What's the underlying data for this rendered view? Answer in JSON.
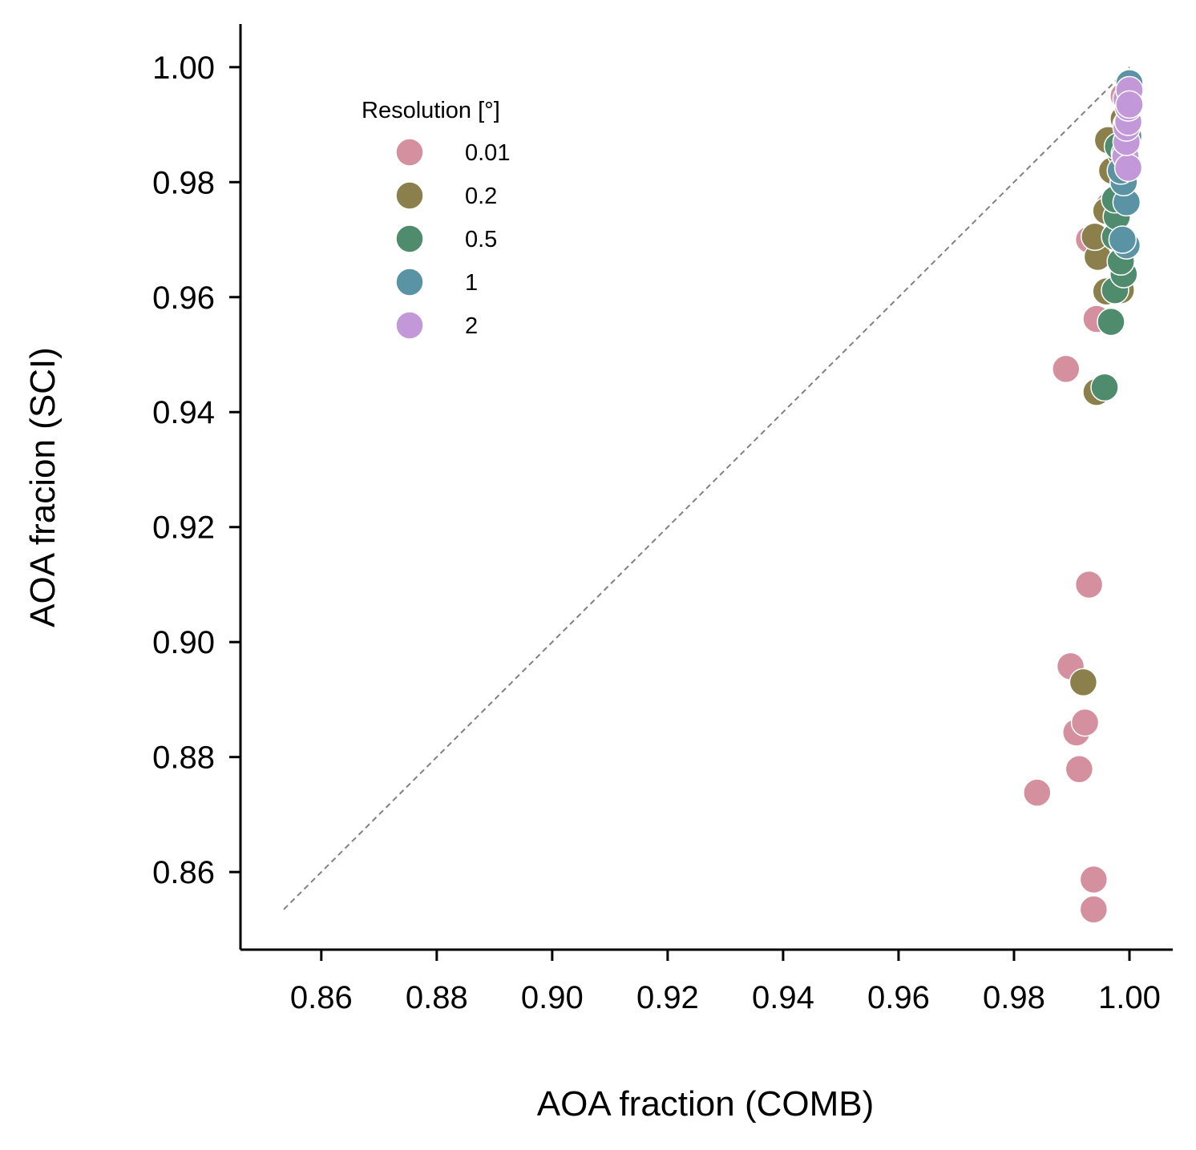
{
  "chart_data": {
    "type": "scatter",
    "xlabel": "AOA fraction (COMB)",
    "ylabel": "AOA fracion (SCI)",
    "xlim": [
      0.846,
      1.0075
    ],
    "ylim": [
      0.8465,
      1.0075
    ],
    "x_ticks": [
      0.86,
      0.88,
      0.9,
      0.92,
      0.94,
      0.96,
      0.98,
      1.0
    ],
    "y_ticks": [
      0.86,
      0.88,
      0.9,
      0.92,
      0.94,
      0.96,
      0.98,
      1.0
    ],
    "x_tick_labels": [
      "0.86",
      "0.88",
      "0.90",
      "0.92",
      "0.94",
      "0.96",
      "0.98",
      "1.00"
    ],
    "y_tick_labels": [
      "0.86",
      "0.88",
      "0.90",
      "0.92",
      "0.94",
      "0.96",
      "0.98",
      "1.00"
    ],
    "grid": false,
    "reference_line": {
      "style": "dashed",
      "color": "#808080",
      "from": [
        0.8535,
        0.8535
      ],
      "to": [
        1.0,
        1.0
      ]
    },
    "legend": {
      "title": "Resolution [°]",
      "placement": "upper-left"
    },
    "series": [
      {
        "name": "0.01",
        "color": "#D4909E",
        "points": [
          [
            0.9938,
            0.8535
          ],
          [
            0.9938,
            0.8587
          ],
          [
            0.984,
            0.8738
          ],
          [
            0.9913,
            0.8779
          ],
          [
            0.9908,
            0.8843
          ],
          [
            0.9923,
            0.886
          ],
          [
            0.9898,
            0.8958
          ],
          [
            0.993,
            0.91
          ],
          [
            0.989,
            0.9475
          ],
          [
            0.9943,
            0.9562
          ],
          [
            0.993,
            0.97
          ],
          [
            0.9965,
            0.976
          ],
          [
            0.9985,
            0.9842
          ],
          [
            0.9995,
            0.99
          ],
          [
            0.999,
            0.995
          ]
        ]
      },
      {
        "name": "0.2",
        "color": "#8B804B",
        "points": [
          [
            0.992,
            0.893
          ],
          [
            0.9943,
            0.9435
          ],
          [
            0.996,
            0.961
          ],
          [
            0.9985,
            0.9612
          ],
          [
            0.9945,
            0.967
          ],
          [
            0.994,
            0.9705
          ],
          [
            0.996,
            0.975
          ],
          [
            0.997,
            0.982
          ],
          [
            0.9963,
            0.9873
          ],
          [
            0.9985,
            0.985
          ],
          [
            0.999,
            0.991
          ]
        ]
      },
      {
        "name": "0.5",
        "color": "#4F8C6E",
        "points": [
          [
            0.9957,
            0.9443
          ],
          [
            0.9968,
            0.9557
          ],
          [
            0.9975,
            0.9612
          ],
          [
            0.999,
            0.964
          ],
          [
            0.9985,
            0.9662
          ],
          [
            0.9975,
            0.9705
          ],
          [
            0.9978,
            0.974
          ],
          [
            0.9985,
            0.977
          ],
          [
            0.9975,
            0.977
          ],
          [
            0.999,
            0.98
          ],
          [
            0.998,
            0.9862
          ],
          [
            0.9995,
            0.99
          ]
        ]
      },
      {
        "name": "1",
        "color": "#5A93A3",
        "points": [
          [
            0.9995,
            0.969
          ],
          [
            0.9988,
            0.97
          ],
          [
            0.9995,
            0.9765
          ],
          [
            0.999,
            0.98
          ],
          [
            0.9985,
            0.982
          ],
          [
            0.9992,
            0.985
          ],
          [
            0.9998,
            0.988
          ],
          [
            0.9998,
            0.993
          ],
          [
            1.0,
            0.9972
          ]
        ]
      },
      {
        "name": "2",
        "color": "#C298D8",
        "points": [
          [
            0.9993,
            0.9845
          ],
          [
            0.9998,
            0.9825
          ],
          [
            0.9995,
            0.987
          ],
          [
            0.9995,
            0.9895
          ],
          [
            0.9998,
            0.9905
          ],
          [
            0.9998,
            0.993
          ],
          [
            0.9995,
            0.9945
          ],
          [
            1.0,
            0.996
          ],
          [
            1.0,
            0.9935
          ]
        ]
      }
    ]
  }
}
